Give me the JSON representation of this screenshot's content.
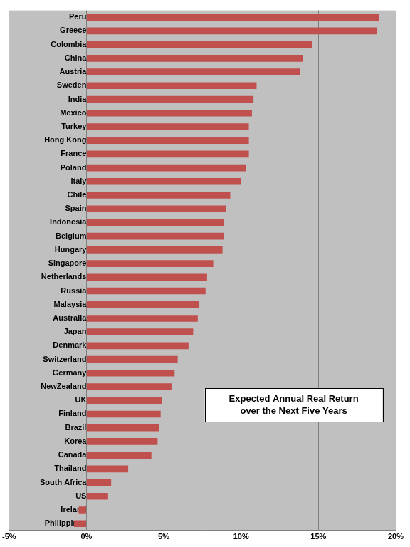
{
  "chart_data": {
    "type": "bar",
    "orientation": "horizontal",
    "categories": [
      "Peru",
      "Greece",
      "Colombia",
      "China",
      "Austria",
      "Sweden",
      "India",
      "Mexico",
      "Turkey",
      "Hong Kong",
      "France",
      "Poland",
      "Italy",
      "Chile",
      "Spain",
      "Indonesia",
      "Belgium",
      "Hungary",
      "Singapore",
      "Netherlands",
      "Russia",
      "Malaysia",
      "Australia",
      "Japan",
      "Denmark",
      "Switzerland",
      "Germany",
      "NewZealand",
      "UK",
      "Finland",
      "Brazil",
      "Korea",
      "Canada",
      "Thailand",
      "South Africa",
      "US",
      "Ireland",
      "Philippines"
    ],
    "values": [
      18.9,
      18.8,
      14.6,
      14.0,
      13.8,
      11.0,
      10.8,
      10.7,
      10.5,
      10.5,
      10.5,
      10.3,
      10.0,
      9.3,
      9.0,
      8.9,
      8.9,
      8.8,
      8.2,
      7.8,
      7.7,
      7.3,
      7.2,
      6.9,
      6.6,
      5.9,
      5.7,
      5.5,
      4.9,
      4.8,
      4.7,
      4.6,
      4.2,
      2.7,
      1.6,
      1.4,
      -0.5,
      -0.8
    ],
    "color": "#c0504d",
    "xlim": [
      -5,
      20
    ],
    "xticks": [
      {
        "value": -5,
        "label": "-5%"
      },
      {
        "value": 0,
        "label": "0%"
      },
      {
        "value": 5,
        "label": "5%"
      },
      {
        "value": 10,
        "label": "10%"
      },
      {
        "value": 15,
        "label": "15%"
      },
      {
        "value": 20,
        "label": "20%"
      }
    ],
    "grid": true,
    "annotation": "Expected Annual Real Return\nover the Next Five Years"
  }
}
